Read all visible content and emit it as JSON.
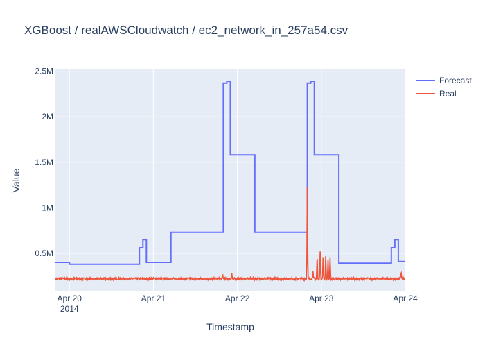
{
  "chart_title": "XGBoost / realAWSCloudwatch / ec2_network_in_257a54.csv",
  "chart_data": {
    "type": "line",
    "title": "XGBoost / realAWSCloudwatch / ec2_network_in_257a54.csv",
    "xlabel": "Timestamp",
    "ylabel": "Value",
    "x_range": [
      "2014-04-19T20:00",
      "2014-04-24T00:00"
    ],
    "ylim": [
      80000,
      2520000
    ],
    "y_ticks": [
      500000,
      1000000,
      1500000,
      2000000,
      2500000
    ],
    "y_tick_labels": [
      "0.5M",
      "1M",
      "1.5M",
      "2M",
      "2.5M"
    ],
    "x_ticks": [
      "2014-04-20",
      "2014-04-21",
      "2014-04-22",
      "2014-04-23",
      "2014-04-24"
    ],
    "x_tick_labels": [
      "Apr 20",
      "Apr 21",
      "Apr 22",
      "Apr 23",
      "Apr 24"
    ],
    "x_tick_sublabel": "2014",
    "grid": true,
    "legend_position": "top-right",
    "series": [
      {
        "name": "Forecast",
        "color": "#636efa",
        "points": [
          [
            "2014-04-19T20:00",
            400000
          ],
          [
            "2014-04-20T00:00",
            400000
          ],
          [
            "2014-04-20T00:00",
            380000
          ],
          [
            "2014-04-20T20:00",
            380000
          ],
          [
            "2014-04-20T20:00",
            560000
          ],
          [
            "2014-04-20T21:00",
            560000
          ],
          [
            "2014-04-20T21:00",
            650000
          ],
          [
            "2014-04-20T22:00",
            650000
          ],
          [
            "2014-04-20T22:00",
            400000
          ],
          [
            "2014-04-21T05:00",
            400000
          ],
          [
            "2014-04-21T05:00",
            730000
          ],
          [
            "2014-04-21T20:00",
            730000
          ],
          [
            "2014-04-21T20:00",
            2370000
          ],
          [
            "2014-04-21T21:00",
            2370000
          ],
          [
            "2014-04-21T21:00",
            2390000
          ],
          [
            "2014-04-21T22:00",
            2390000
          ],
          [
            "2014-04-21T22:00",
            1580000
          ],
          [
            "2014-04-22T05:00",
            1580000
          ],
          [
            "2014-04-22T05:00",
            730000
          ],
          [
            "2014-04-22T20:00",
            730000
          ],
          [
            "2014-04-22T20:00",
            2370000
          ],
          [
            "2014-04-22T21:00",
            2370000
          ],
          [
            "2014-04-22T21:00",
            2390000
          ],
          [
            "2014-04-22T22:00",
            2390000
          ],
          [
            "2014-04-22T22:00",
            1580000
          ],
          [
            "2014-04-23T05:00",
            1580000
          ],
          [
            "2014-04-23T05:00",
            390000
          ],
          [
            "2014-04-23T20:00",
            390000
          ],
          [
            "2014-04-23T20:00",
            560000
          ],
          [
            "2014-04-23T21:00",
            560000
          ],
          [
            "2014-04-23T21:00",
            650000
          ],
          [
            "2014-04-23T22:00",
            650000
          ],
          [
            "2014-04-23T22:00",
            410000
          ],
          [
            "2014-04-24T00:00",
            410000
          ]
        ]
      },
      {
        "name": "Real",
        "color": "#ef553b",
        "baseline": 220000,
        "points": [
          [
            "2014-04-19T20:00",
            215000
          ],
          [
            "2014-04-20T12:00",
            222000
          ],
          [
            "2014-04-21T12:00",
            220000
          ],
          [
            "2014-04-21T19:48",
            270000
          ],
          [
            "2014-04-21T22:24",
            285000
          ],
          [
            "2014-04-22T12:00",
            218000
          ],
          [
            "2014-04-22T20:00",
            1230000
          ],
          [
            "2014-04-22T21:36",
            310000
          ],
          [
            "2014-04-22T22:48",
            480000
          ],
          [
            "2014-04-22T23:40",
            520000
          ],
          [
            "2014-04-23T00:30",
            450000
          ],
          [
            "2014-04-23T01:15",
            470000
          ],
          [
            "2014-04-23T01:55",
            430000
          ],
          [
            "2014-04-23T02:30",
            450000
          ],
          [
            "2014-04-23T12:00",
            225000
          ],
          [
            "2014-04-23T22:48",
            295000
          ],
          [
            "2014-04-24T00:00",
            230000
          ]
        ]
      }
    ]
  }
}
